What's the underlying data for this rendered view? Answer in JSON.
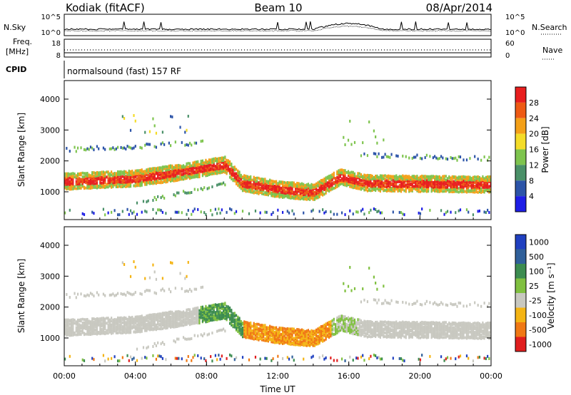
{
  "header": {
    "radar": "Kodiak (fitACF)",
    "beam": "Beam 10",
    "date": "08/Apr/2014"
  },
  "nsky_panel": {
    "left_label": "N.Sky",
    "right_label": "N.Search",
    "left_ticks": [
      "10^5",
      "10^0"
    ],
    "right_ticks": [
      "10^5",
      "10^0"
    ]
  },
  "freq_panel": {
    "left_label_line1": "Freq.",
    "left_label_line2": "[MHz]",
    "right_label": "Nave",
    "left_ticks": [
      "18",
      "8"
    ],
    "right_ticks": [
      "60",
      "0"
    ]
  },
  "cpid_panel": {
    "label": "CPID",
    "text": "normalsound (fast) 157 RF"
  },
  "chart_data": [
    {
      "type": "heatmap",
      "name": "power",
      "ylabel": "Slant Range [km]",
      "xlabel": "",
      "ylim": [
        100,
        4600
      ],
      "yticks": [
        "1000",
        "2000",
        "3000",
        "4000"
      ],
      "colorbar": {
        "label": "Power [dB]",
        "ticks": [
          "4",
          "8",
          "12",
          "16",
          "20",
          "24",
          "28"
        ],
        "colors": [
          "#1e1ee6",
          "#2c54a8",
          "#4a9068",
          "#7ec44e",
          "#f4dc28",
          "#f4a018",
          "#ee5a14",
          "#e81e1e"
        ]
      },
      "features": [
        {
          "range_km_center_at_hour": [
            [
              0,
              1350
            ],
            [
              4,
              1450
            ],
            [
              7,
              1700
            ],
            [
              9,
              1900
            ],
            [
              10,
              1300
            ],
            [
              12,
              1100
            ],
            [
              14,
              1000
            ],
            [
              15.5,
              1500
            ],
            [
              17,
              1300
            ],
            [
              24,
              1250
            ]
          ],
          "value_db": 28
        }
      ]
    },
    {
      "type": "heatmap",
      "name": "velocity",
      "ylabel": "Slant Range [km]",
      "xlabel": "Time UT",
      "ylim": [
        100,
        4600
      ],
      "yticks": [
        "1000",
        "2000",
        "3000",
        "4000"
      ],
      "xticks": [
        "00:00",
        "04:00",
        "08:00",
        "12:00",
        "16:00",
        "20:00",
        "00:00"
      ],
      "colorbar": {
        "label": "Velocity [m s⁻¹]",
        "ticks": [
          "1000",
          "500",
          "100",
          "25",
          "-25",
          "-100",
          "-500",
          "-1000"
        ],
        "colors": [
          "#2040c0",
          "#30609a",
          "#3c8c50",
          "#80c040",
          "#c8c8c0",
          "#f4b414",
          "#f07814",
          "#e01e1e"
        ]
      }
    }
  ]
}
